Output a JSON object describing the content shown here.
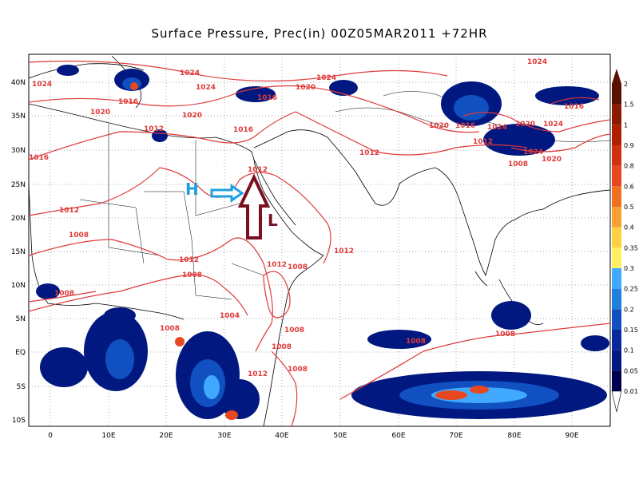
{
  "title": "Surface Pressure,  Prec(in) 00Z05MAR2011 +72HR",
  "lat_labels": [
    "40N",
    "35N",
    "30N",
    "25N",
    "20N",
    "15N",
    "10N",
    "5N",
    "EQ",
    "5S",
    "10S"
  ],
  "lon_labels": [
    "0",
    "10E",
    "20E",
    "30E",
    "40E",
    "50E",
    "60E",
    "70E",
    "80E",
    "90E"
  ],
  "isobar_labels": [
    "1024",
    "1020",
    "1016",
    "1012",
    "1008",
    "1004"
  ],
  "annotations": {
    "high": "H",
    "low": "L"
  },
  "colorbar": {
    "levels": [
      "2",
      "1.5",
      "1",
      "0.9",
      "0.8",
      "0.6",
      "0.5",
      "0.4",
      "0.35",
      "0.3",
      "0.25",
      "0.2",
      "0.15",
      "0.1",
      "0.05",
      "0.01"
    ],
    "colors": [
      "#5a1000",
      "#8a1a00",
      "#b02000",
      "#d03010",
      "#e84820",
      "#f07020",
      "#f8a030",
      "#ffd040",
      "#fff060",
      "#40a8ff",
      "#2080e0",
      "#1050c0",
      "#0828a0",
      "#001880",
      "#000050"
    ]
  },
  "colors": {
    "isobar": "#e03a3a",
    "land_outline": "#000000",
    "arrow_H": "#1ea0e0",
    "arrow_L": "#7a1020"
  }
}
